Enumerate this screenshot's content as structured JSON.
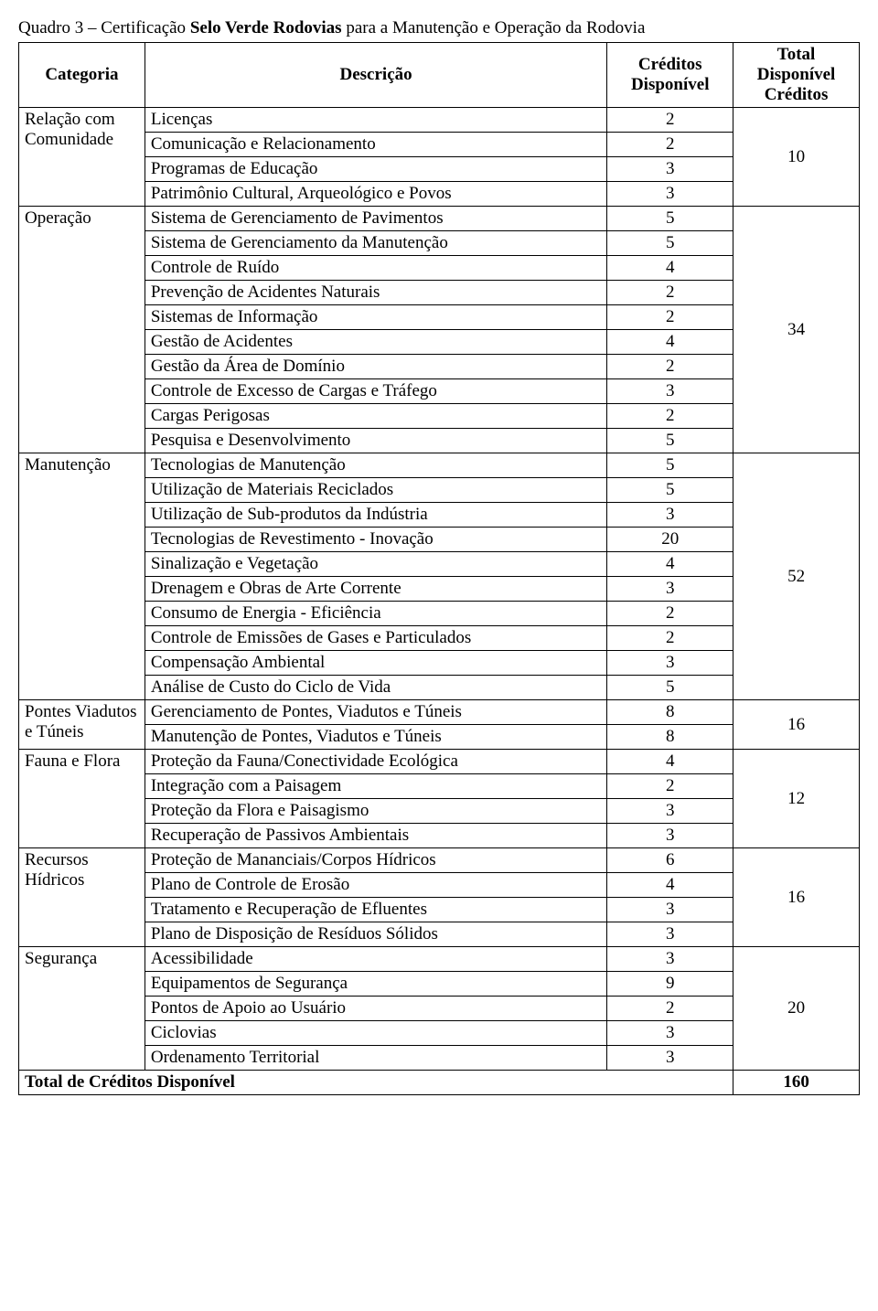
{
  "title_prefix": "Quadro 3 – Certificação ",
  "title_bold": "Selo Verde Rodovias",
  "title_suffix": " para a Manutenção e Operação da Rodovia",
  "headers": {
    "categoria": "Categoria",
    "descricao": "Descrição",
    "creditos": "Créditos Disponível",
    "total": "Total Disponível Créditos"
  },
  "footer": {
    "label": "Total de Créditos Disponível",
    "value": "160"
  },
  "groups": [
    {
      "cat": "Relação com Comunidade",
      "total": "10",
      "rows": [
        {
          "d": "Licenças",
          "c": "2"
        },
        {
          "d": "Comunicação e Relacionamento",
          "c": "2"
        },
        {
          "d": "Programas de Educação",
          "c": "3"
        },
        {
          "d": "Patrimônio Cultural, Arqueológico e Povos",
          "c": "3"
        }
      ]
    },
    {
      "cat": "Operação",
      "total": "34",
      "rows": [
        {
          "d": "Sistema de Gerenciamento de Pavimentos",
          "c": "5"
        },
        {
          "d": "Sistema de Gerenciamento da Manutenção",
          "c": "5"
        },
        {
          "d": "Controle de Ruído",
          "c": "4"
        },
        {
          "d": "Prevenção de Acidentes Naturais",
          "c": "2"
        },
        {
          "d": "Sistemas de Informação",
          "c": "2"
        },
        {
          "d": "Gestão de Acidentes",
          "c": "4"
        },
        {
          "d": "Gestão da Área de Domínio",
          "c": "2"
        },
        {
          "d": "Controle de Excesso de Cargas e Tráfego",
          "c": "3"
        },
        {
          "d": "Cargas Perigosas",
          "c": "2"
        },
        {
          "d": "Pesquisa e Desenvolvimento",
          "c": "5"
        }
      ]
    },
    {
      "cat": "Manutenção",
      "total": "52",
      "rows": [
        {
          "d": "Tecnologias de Manutenção",
          "c": "5"
        },
        {
          "d": "Utilização de Materiais Reciclados",
          "c": "5"
        },
        {
          "d": "Utilização de Sub-produtos da Indústria",
          "c": "3"
        },
        {
          "d": "Tecnologias de Revestimento - Inovação",
          "c": "20"
        },
        {
          "d": "Sinalização e Vegetação",
          "c": "4"
        },
        {
          "d": "Drenagem e Obras de Arte Corrente",
          "c": "3"
        },
        {
          "d": "Consumo de Energia - Eficiência",
          "c": "2"
        },
        {
          "d": "Controle de Emissões de Gases e Particulados",
          "c": "2"
        },
        {
          "d": "Compensação Ambiental",
          "c": "3"
        },
        {
          "d": "Análise de Custo do Ciclo de Vida",
          "c": "5"
        }
      ]
    },
    {
      "cat": "Pontes Viadutos e Túneis",
      "total": "16",
      "rows": [
        {
          "d": "Gerenciamento de Pontes, Viadutos e Túneis",
          "c": "8"
        },
        {
          "d": "Manutenção de Pontes, Viadutos e Túneis",
          "c": "8"
        }
      ]
    },
    {
      "cat": "Fauna e Flora",
      "total": "12",
      "rows": [
        {
          "d": "Proteção da Fauna/Conectividade Ecológica",
          "c": "4"
        },
        {
          "d": "Integração com a Paisagem",
          "c": "2"
        },
        {
          "d": "Proteção da Flora e Paisagismo",
          "c": "3"
        },
        {
          "d": "Recuperação de Passivos Ambientais",
          "c": "3"
        }
      ]
    },
    {
      "cat": "Recursos Hídricos",
      "total": "16",
      "rows": [
        {
          "d": "Proteção de Mananciais/Corpos Hídricos",
          "c": "6"
        },
        {
          "d": "Plano de Controle de Erosão",
          "c": "4"
        },
        {
          "d": "Tratamento e Recuperação de Efluentes",
          "c": "3"
        },
        {
          "d": "Plano de Disposição de Resíduos Sólidos",
          "c": "3"
        }
      ]
    },
    {
      "cat": "Segurança",
      "total": "20",
      "rows": [
        {
          "d": "Acessibilidade",
          "c": "3"
        },
        {
          "d": "Equipamentos de Segurança",
          "c": "9"
        },
        {
          "d": "Pontos de Apoio ao Usuário",
          "c": "2"
        },
        {
          "d": "Ciclovias",
          "c": "3"
        },
        {
          "d": "Ordenamento Territorial",
          "c": "3"
        }
      ]
    }
  ]
}
